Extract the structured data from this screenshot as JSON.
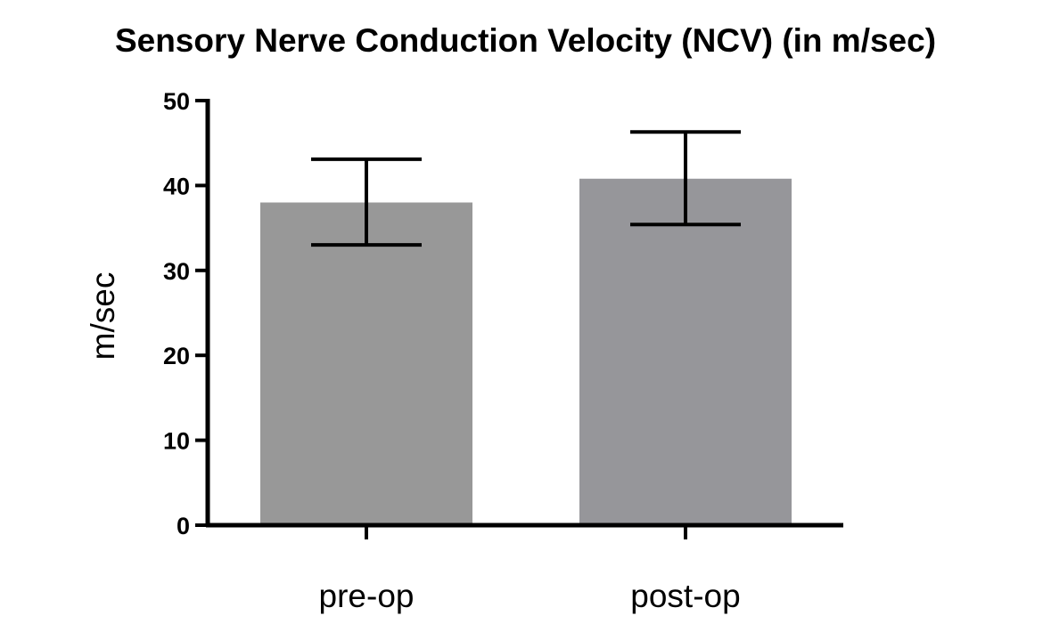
{
  "chart_data": {
    "type": "bar",
    "title": "Sensory Nerve Conduction Velocity (NCV) (in m/sec)",
    "xlabel": "",
    "ylabel": "m/sec",
    "categories": [
      "pre-op",
      "post-op"
    ],
    "values": [
      38,
      40.8
    ],
    "error_upper": [
      43.1,
      46.3
    ],
    "error_lower": [
      33,
      35.4
    ],
    "ylim": [
      0,
      50
    ],
    "yticks": [
      0,
      10,
      20,
      30,
      40,
      50
    ],
    "grid": false,
    "colors": {
      "bars": [
        "#989898",
        "#96969a"
      ],
      "axis": "#000000",
      "error_bars": "#000000"
    }
  }
}
